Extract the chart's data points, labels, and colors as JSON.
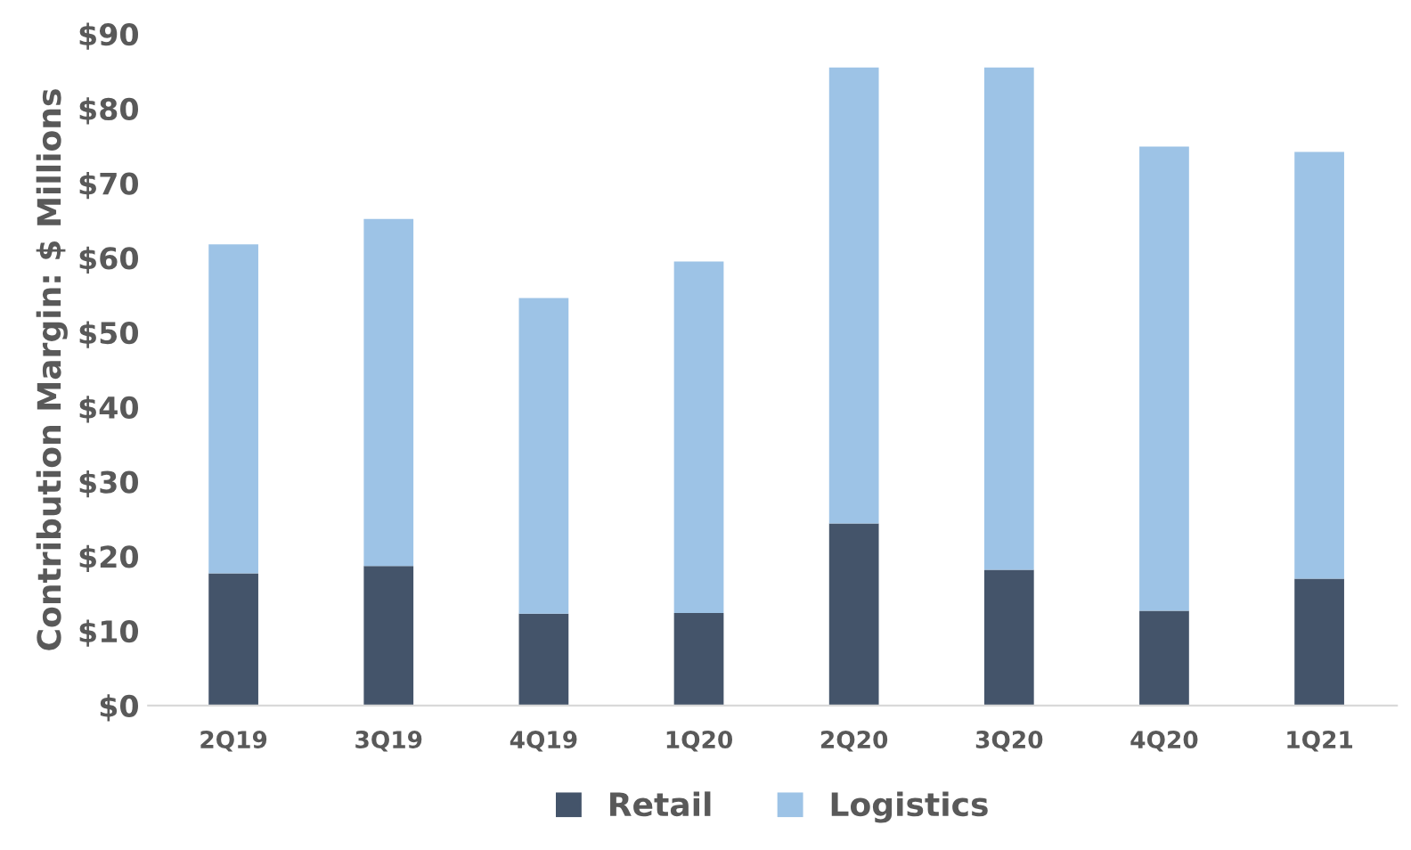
{
  "chart_data": {
    "type": "bar",
    "stacked": true,
    "ylabel": "Contribution Margin: $ Millions",
    "categories": [
      "2Q19",
      "3Q19",
      "4Q19",
      "1Q20",
      "2Q20",
      "3Q20",
      "4Q20",
      "1Q21"
    ],
    "series": [
      {
        "name": "Retail",
        "color": "#44546a",
        "values": [
          17.7,
          18.7,
          12.3,
          12.4,
          24.4,
          18.2,
          12.7,
          17.0
        ]
      },
      {
        "name": "Logistics",
        "color": "#9dc3e6",
        "values": [
          44.1,
          46.5,
          42.3,
          47.1,
          61.1,
          67.3,
          62.2,
          57.2
        ]
      }
    ],
    "ylim": [
      0,
      90
    ],
    "yticks": [
      {
        "value": 0,
        "label": "$0"
      },
      {
        "value": 10,
        "label": "$10"
      },
      {
        "value": 20,
        "label": "$20"
      },
      {
        "value": 30,
        "label": "$30"
      },
      {
        "value": 40,
        "label": "$40"
      },
      {
        "value": 50,
        "label": "$50"
      },
      {
        "value": 60,
        "label": "$60"
      },
      {
        "value": 70,
        "label": "$70"
      },
      {
        "value": 80,
        "label": "$80"
      },
      {
        "value": 90,
        "label": "$90"
      }
    ],
    "grid": false,
    "legend": "bottom"
  }
}
